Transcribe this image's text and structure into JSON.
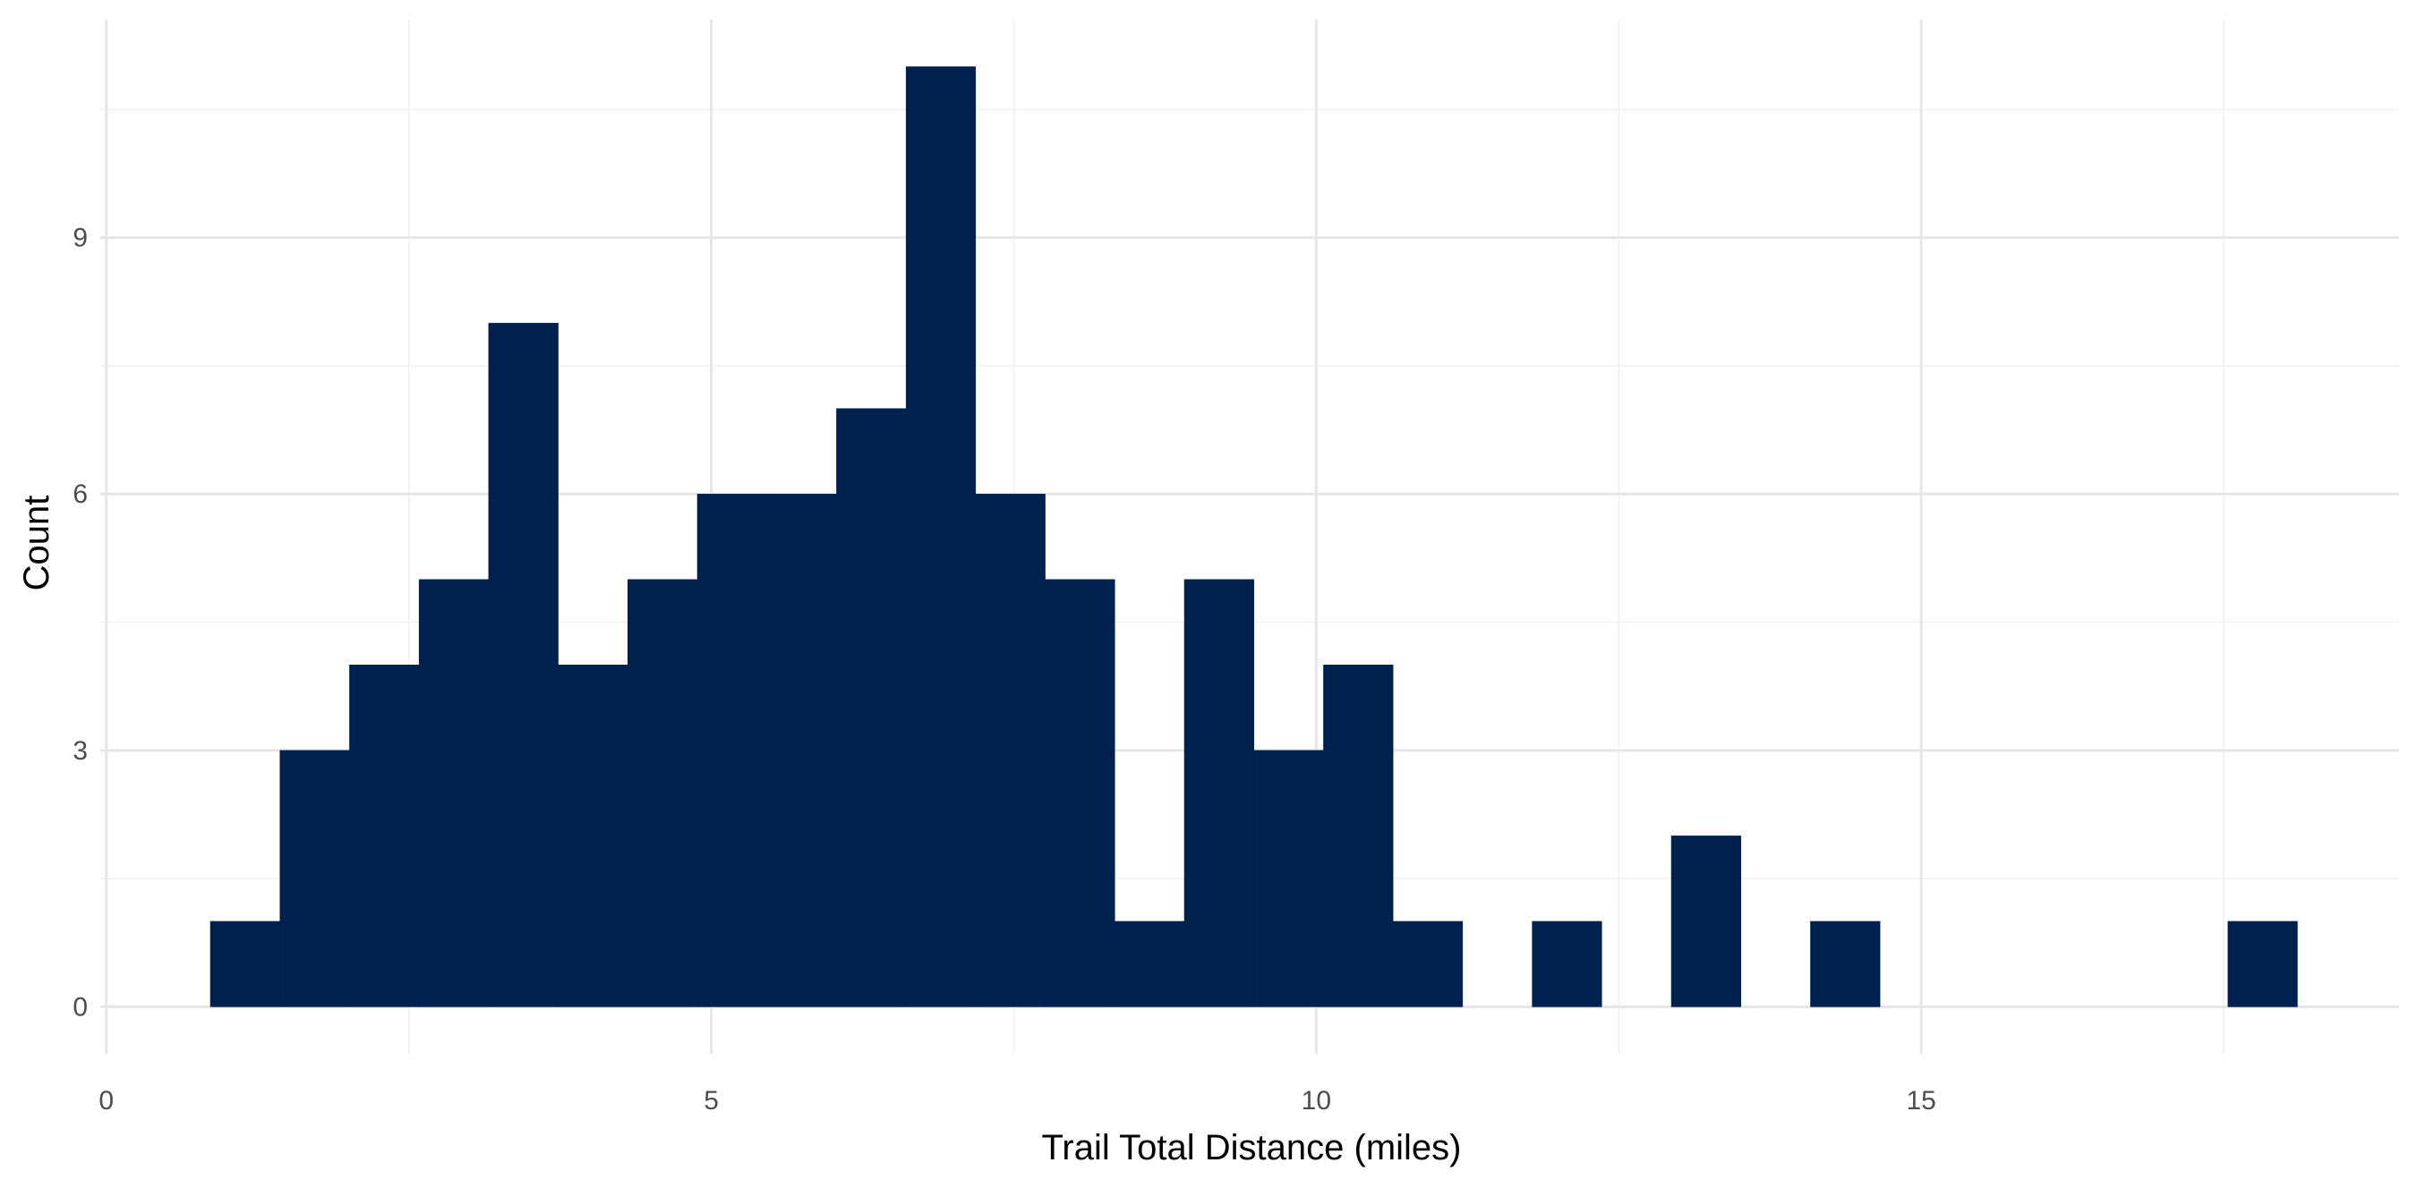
{
  "chart_data": {
    "type": "bar",
    "subtype": "histogram",
    "xlabel": "Trail Total Distance (miles)",
    "ylabel": "Count",
    "x_ticks": [
      0,
      5,
      10,
      15
    ],
    "y_ticks": [
      0,
      3,
      6,
      9
    ],
    "xlim": [
      -0.05,
      18.95
    ],
    "ylim": [
      -0.55,
      11.55
    ],
    "bin_width": 0.575,
    "bins": [
      {
        "x0": 0.86,
        "x1": 1.435,
        "count": 1
      },
      {
        "x0": 1.435,
        "x1": 2.01,
        "count": 3
      },
      {
        "x0": 2.01,
        "x1": 2.585,
        "count": 4
      },
      {
        "x0": 2.585,
        "x1": 3.16,
        "count": 5
      },
      {
        "x0": 3.16,
        "x1": 3.735,
        "count": 8
      },
      {
        "x0": 3.735,
        "x1": 4.31,
        "count": 4
      },
      {
        "x0": 4.31,
        "x1": 4.885,
        "count": 5
      },
      {
        "x0": 4.885,
        "x1": 5.46,
        "count": 6
      },
      {
        "x0": 5.46,
        "x1": 6.035,
        "count": 6
      },
      {
        "x0": 6.035,
        "x1": 6.61,
        "count": 7
      },
      {
        "x0": 6.61,
        "x1": 7.185,
        "count": 11
      },
      {
        "x0": 7.185,
        "x1": 7.76,
        "count": 6
      },
      {
        "x0": 7.76,
        "x1": 8.335,
        "count": 5
      },
      {
        "x0": 8.335,
        "x1": 8.91,
        "count": 1
      },
      {
        "x0": 8.91,
        "x1": 9.485,
        "count": 5
      },
      {
        "x0": 9.485,
        "x1": 10.06,
        "count": 3
      },
      {
        "x0": 10.06,
        "x1": 10.635,
        "count": 4
      },
      {
        "x0": 10.635,
        "x1": 11.21,
        "count": 1
      },
      {
        "x0": 11.21,
        "x1": 11.785,
        "count": 0
      },
      {
        "x0": 11.785,
        "x1": 12.36,
        "count": 1
      },
      {
        "x0": 12.36,
        "x1": 12.935,
        "count": 0
      },
      {
        "x0": 12.935,
        "x1": 13.51,
        "count": 2
      },
      {
        "x0": 13.51,
        "x1": 14.085,
        "count": 0
      },
      {
        "x0": 14.085,
        "x1": 14.66,
        "count": 1
      },
      {
        "x0": 14.66,
        "x1": 15.235,
        "count": 0
      },
      {
        "x0": 15.235,
        "x1": 15.81,
        "count": 0
      },
      {
        "x0": 15.81,
        "x1": 16.385,
        "count": 0
      },
      {
        "x0": 16.385,
        "x1": 16.96,
        "count": 0
      },
      {
        "x0": 16.96,
        "x1": 17.535,
        "count": 0
      },
      {
        "x0": 17.535,
        "x1": 18.11,
        "count": 1
      }
    ],
    "bar_color": "#00204d",
    "grid": true,
    "legend": "none"
  }
}
